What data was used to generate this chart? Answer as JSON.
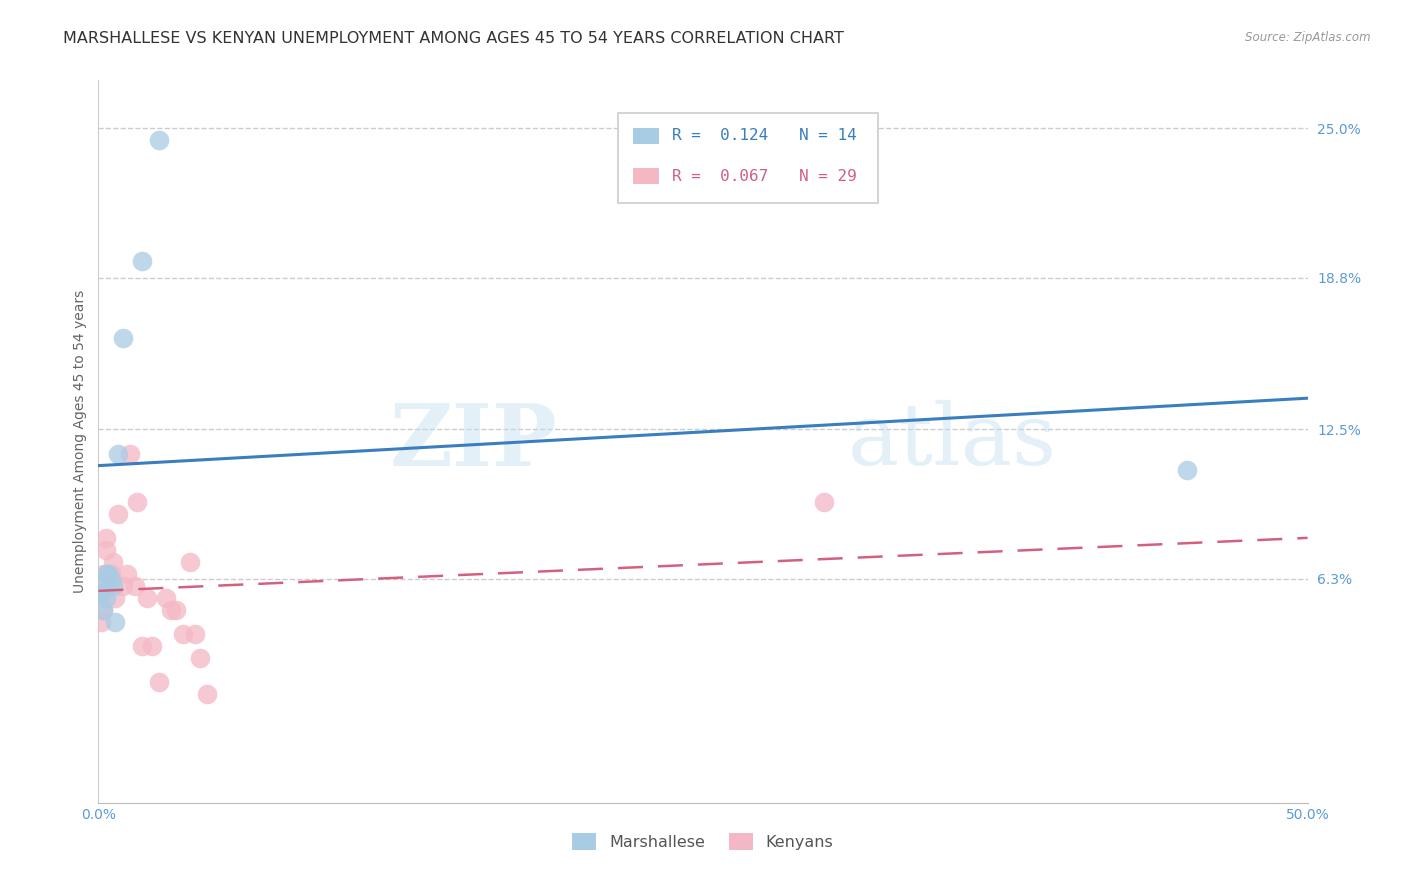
{
  "title": "MARSHALLESE VS KENYAN UNEMPLOYMENT AMONG AGES 45 TO 54 YEARS CORRELATION CHART",
  "source": "Source: ZipAtlas.com",
  "ylabel": "Unemployment Among Ages 45 to 54 years",
  "xlim": [
    0.0,
    0.5
  ],
  "ylim": [
    -0.03,
    0.27
  ],
  "xticks": [
    0.0,
    0.1,
    0.2,
    0.3,
    0.4,
    0.5
  ],
  "xtick_labels": [
    "0.0%",
    "",
    "",
    "",
    "",
    "50.0%"
  ],
  "ytick_labels_right": [
    "25.0%",
    "18.8%",
    "12.5%",
    "6.3%"
  ],
  "ytick_values_right": [
    0.25,
    0.188,
    0.125,
    0.063
  ],
  "blue_label": "Marshallese",
  "pink_label": "Kenyans",
  "blue_R": 0.124,
  "blue_N": 14,
  "pink_R": 0.067,
  "pink_N": 29,
  "blue_color": "#a8cce4",
  "pink_color": "#f4b8c4",
  "blue_line_color": "#3a7ebf",
  "pink_line_color": "#d46080",
  "watermark_zip": "ZIP",
  "watermark_atlas": "atlas",
  "background_color": "#ffffff",
  "title_fontsize": 11.5,
  "axis_fontsize": 10,
  "tick_fontsize": 10,
  "grid_color": "#cccccc",
  "blue_line_start_x": 0.0,
  "blue_line_end_x": 0.5,
  "blue_line_start_y": 0.11,
  "blue_line_end_y": 0.138,
  "pink_line_start_x": 0.0,
  "pink_line_end_x": 0.5,
  "pink_line_start_y": 0.058,
  "pink_line_end_y": 0.08,
  "blue_points_x": [
    0.001,
    0.002,
    0.002,
    0.003,
    0.003,
    0.004,
    0.005,
    0.006,
    0.007,
    0.008,
    0.01,
    0.018,
    0.025,
    0.45
  ],
  "blue_points_y": [
    0.057,
    0.06,
    0.05,
    0.065,
    0.055,
    0.065,
    0.063,
    0.06,
    0.045,
    0.115,
    0.163,
    0.195,
    0.245,
    0.108
  ],
  "pink_points_x": [
    0.001,
    0.001,
    0.002,
    0.002,
    0.003,
    0.003,
    0.004,
    0.005,
    0.006,
    0.007,
    0.008,
    0.01,
    0.012,
    0.013,
    0.015,
    0.016,
    0.018,
    0.02,
    0.022,
    0.025,
    0.028,
    0.03,
    0.032,
    0.035,
    0.038,
    0.04,
    0.042,
    0.045,
    0.3
  ],
  "pink_points_y": [
    0.057,
    0.045,
    0.065,
    0.05,
    0.08,
    0.075,
    0.065,
    0.065,
    0.07,
    0.055,
    0.09,
    0.06,
    0.065,
    0.115,
    0.06,
    0.095,
    0.035,
    0.055,
    0.035,
    0.02,
    0.055,
    0.05,
    0.05,
    0.04,
    0.07,
    0.04,
    0.03,
    0.015,
    0.095
  ],
  "legend_blue_R": "R =  0.124",
  "legend_blue_N": "N = 14",
  "legend_pink_R": "R =  0.067",
  "legend_pink_N": "N = 29"
}
